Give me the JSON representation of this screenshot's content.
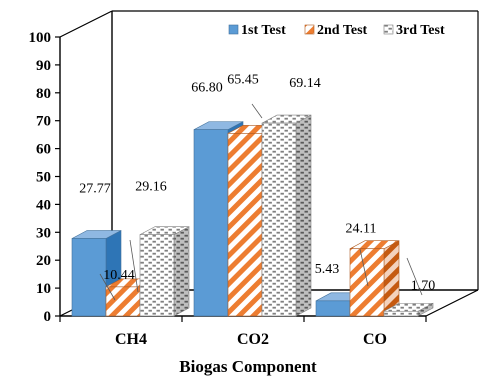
{
  "chart_data": {
    "type": "bar",
    "style": "3d-clustered-column",
    "categories": [
      "CH4",
      "CO2",
      "CO"
    ],
    "series": [
      {
        "name": "1st Test",
        "values": [
          27.77,
          66.8,
          5.43
        ],
        "color": "#5b9bd5",
        "pattern": "solid"
      },
      {
        "name": "2nd Test",
        "values": [
          10.44,
          65.45,
          24.11
        ],
        "color": "#ed7d31",
        "pattern": "diagonal-stripes"
      },
      {
        "name": "3rd Test",
        "values": [
          29.16,
          69.14,
          1.7
        ],
        "color": "#7f7f7f",
        "pattern": "dots"
      }
    ],
    "data_labels": [
      [
        "27.77",
        "66.80",
        "5.43"
      ],
      [
        "10.44",
        "65.45",
        "24.11"
      ],
      [
        "29.16",
        "69.14",
        "1.70"
      ]
    ],
    "xlabel": "Biogas Component",
    "ylabel": "",
    "ylim": [
      0,
      100
    ],
    "yticks": [
      "0",
      "10",
      "20",
      "30",
      "40",
      "50",
      "60",
      "70",
      "80",
      "90",
      "100"
    ],
    "grid": false,
    "legend_position": "top-right"
  }
}
